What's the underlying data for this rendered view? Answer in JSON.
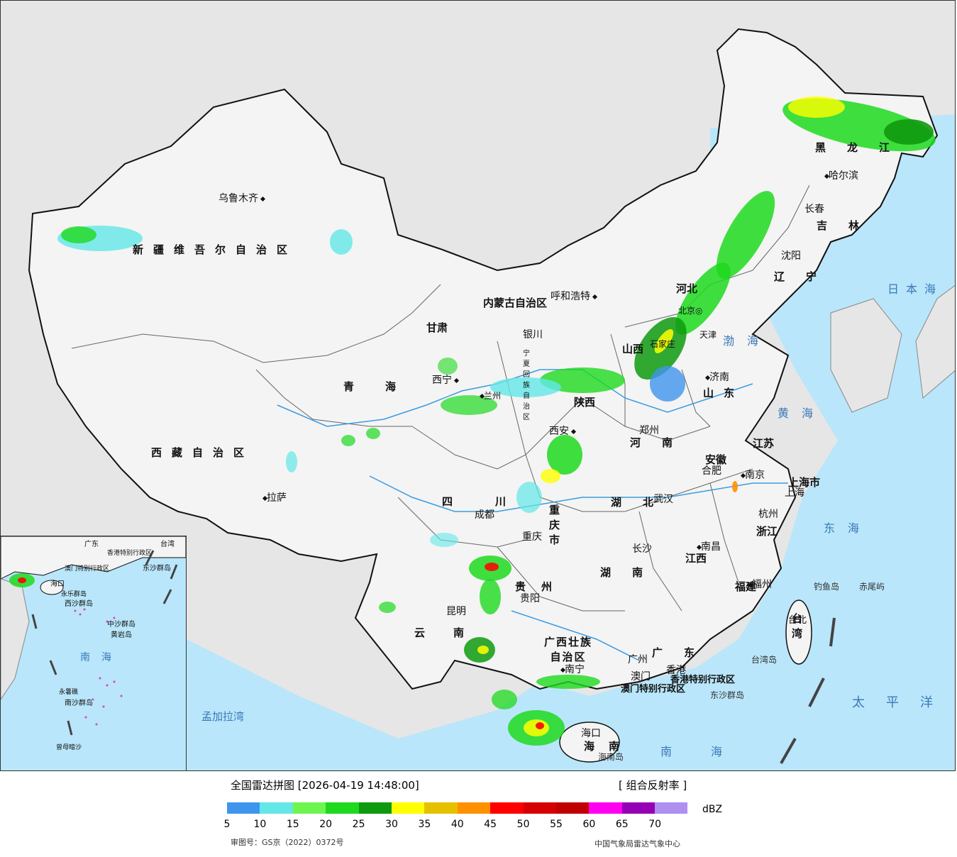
{
  "map": {
    "colors": {
      "background": "#e6e6e6",
      "land": "#f4f4f4",
      "sea": "#b9e6fa",
      "border": "#111111",
      "river": "#3b9be0"
    },
    "provinces": [
      "新疆维吾尔自治区",
      "西藏自治区",
      "青海",
      "甘肃",
      "四川",
      "云南",
      "贵州",
      "广西壮族自治区",
      "广东",
      "湖南",
      "湖北",
      "河南",
      "陕西",
      "山西",
      "河北",
      "山东",
      "江苏",
      "安徽",
      "江西",
      "浙江",
      "福建",
      "辽宁",
      "吉林",
      "黑龙江",
      "内蒙古自治区",
      "宁夏回族自治区",
      "重庆市",
      "海南",
      "台湾",
      "上海市"
    ],
    "cities": [
      "乌鲁木齐",
      "拉萨",
      "西宁",
      "兰州",
      "银川",
      "呼和浩特",
      "北京",
      "天津",
      "石家庄",
      "济南",
      "郑州",
      "西安",
      "成都",
      "重庆",
      "昆明",
      "贵阳",
      "南宁",
      "长沙",
      "武汉",
      "合肥",
      "南京",
      "上海",
      "杭州",
      "南昌",
      "福州",
      "台北",
      "广州",
      "香港",
      "澳门",
      "海口",
      "沈阳",
      "长春",
      "哈尔滨"
    ],
    "seas": [
      "日本海",
      "渤海",
      "黄海",
      "东海",
      "南海",
      "太平洋",
      "孟加拉湾"
    ],
    "islands": [
      "钓鱼岛",
      "赤尾屿",
      "东沙群岛",
      "海南岛",
      "台湾岛"
    ],
    "sar": [
      "香港特别行政区",
      "澳门特别行政区"
    ]
  },
  "inset": {
    "labels": [
      "广东",
      "台湾",
      "香港特别行政区",
      "澳门特别行政区",
      "东沙群岛",
      "海口",
      "西沙群岛",
      "永乐群岛",
      "中沙群岛",
      "黄岩岛",
      "南海",
      "永暑礁",
      "南沙群岛",
      "曾母暗沙"
    ]
  },
  "legend": {
    "title": "全国雷达拼图 [2026-04-19 14:48:00]",
    "product": "[ 组合反射率 ]",
    "unit": "dBZ",
    "ticks": [
      "5",
      "10",
      "15",
      "20",
      "25",
      "30",
      "35",
      "40",
      "45",
      "50",
      "55",
      "60",
      "65",
      "70"
    ],
    "colors": [
      "#3f95ee",
      "#63e7e7",
      "#6ef550",
      "#1ed91e",
      "#0e9a0e",
      "#ffff00",
      "#e6c100",
      "#ff9100",
      "#ff0000",
      "#d60000",
      "#c00000",
      "#ff00f0",
      "#9600b4",
      "#ad90f0"
    ],
    "approval": "审图号：GS京（2022）0372号",
    "agency": "中国气象局雷达气象中心"
  },
  "echo_colors": {
    "light": "#3f95ee",
    "cyan": "#63e7e7",
    "lightgreen": "#6ef550",
    "green": "#1ed91e",
    "darkgreen": "#0e9a0e",
    "yellow": "#ffff00",
    "orange": "#ff9100",
    "red": "#ff0000"
  }
}
